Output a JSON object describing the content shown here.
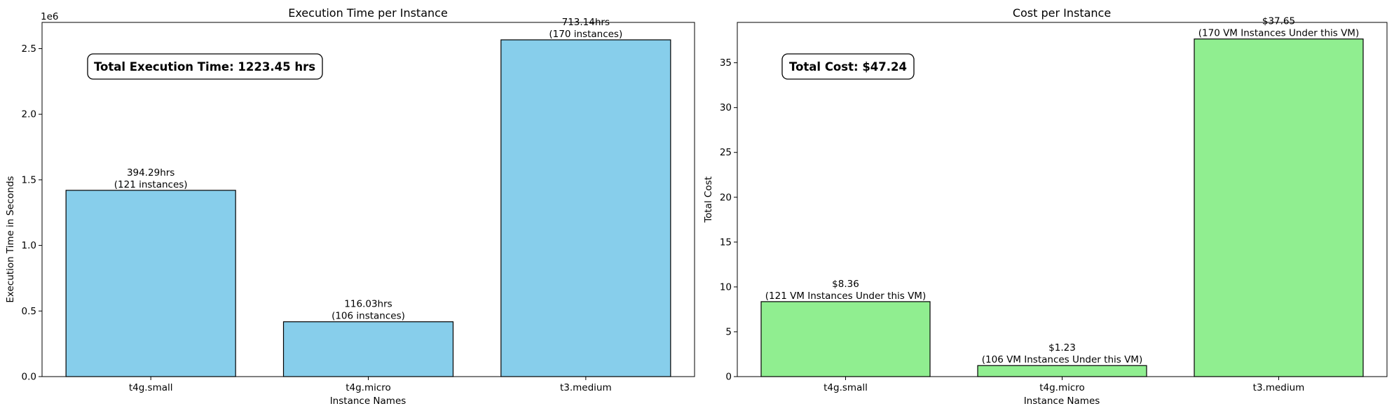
{
  "chart_data": [
    {
      "type": "bar",
      "title": "Execution Time per Instance",
      "xlabel": "Instance Names",
      "ylabel": "Execution Time in Seconds",
      "y_offset_label": "1e6",
      "ylim": [
        0,
        2.7
      ],
      "yticks": [
        0.0,
        0.5,
        1.0,
        1.5,
        2.0,
        2.5
      ],
      "ytick_labels": [
        "0.0",
        "0.5",
        "1.0",
        "1.5",
        "2.0",
        "2.5"
      ],
      "categories": [
        "t4g.small",
        "t4g.micro",
        "t3.medium"
      ],
      "values": [
        1.42,
        0.418,
        2.567
      ],
      "bar_labels": [
        [
          "394.29hrs",
          "(121 instances)"
        ],
        [
          "116.03hrs",
          "(106 instances)"
        ],
        [
          "713.14hrs",
          "(170 instances)"
        ]
      ],
      "annotation": "Total Execution Time: 1223.45 hrs",
      "bar_color": "#87CEEB",
      "legend": "none",
      "grid": false
    },
    {
      "type": "bar",
      "title": "Cost per Instance",
      "xlabel": "Instance Names",
      "ylabel": "Total Cost",
      "ylim": [
        0,
        39.5
      ],
      "yticks": [
        0,
        5,
        10,
        15,
        20,
        25,
        30,
        35
      ],
      "ytick_labels": [
        "0",
        "5",
        "10",
        "15",
        "20",
        "25",
        "30",
        "35"
      ],
      "categories": [
        "t4g.small",
        "t4g.micro",
        "t3.medium"
      ],
      "values": [
        8.36,
        1.23,
        37.65
      ],
      "bar_labels": [
        [
          "$8.36",
          "(121 VM Instances Under this VM)"
        ],
        [
          "$1.23",
          "(106 VM Instances Under this VM)"
        ],
        [
          "$37.65",
          "(170 VM Instances Under this VM)"
        ]
      ],
      "annotation": "Total Cost: $47.24",
      "bar_color": "#90EE90",
      "legend": "none",
      "grid": false
    }
  ]
}
